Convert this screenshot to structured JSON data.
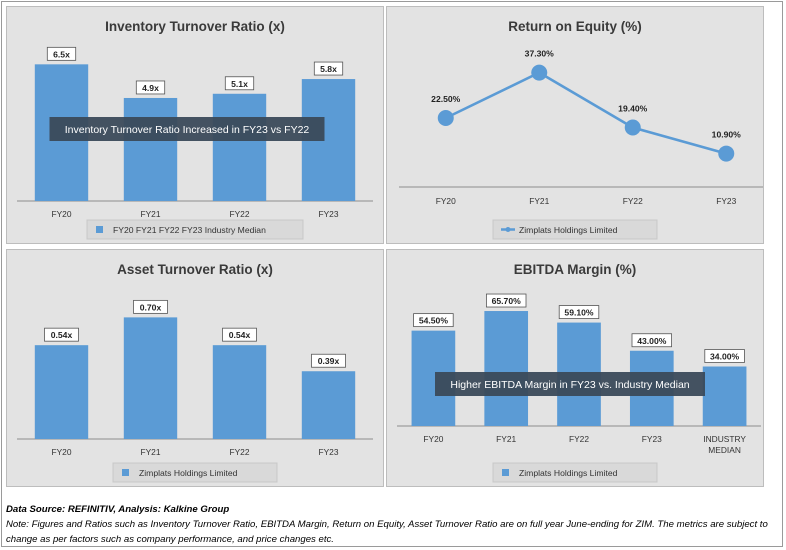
{
  "colors": {
    "bar": "#5b9bd5",
    "panel_bg": "#e3e3e3",
    "annotation_bg": "#3b4a5a",
    "axis": "#8c8c8c"
  },
  "chart_data": [
    {
      "id": "inventory",
      "type": "bar",
      "title": "Inventory Turnover Ratio (x)",
      "categories": [
        "FY20",
        "FY21",
        "FY22",
        "FY23"
      ],
      "values": [
        6.5,
        4.9,
        5.1,
        5.8
      ],
      "labels": [
        "6.5x",
        "4.9x",
        "5.1x",
        "5.8x"
      ],
      "ylim": [
        0,
        7.8
      ],
      "legend": "FY20 FY21 FY22 FY23 Industry Median",
      "legend_position": "bottom",
      "annotation": "Inventory Turnover Ratio Increased in FY23 vs FY22",
      "grid": false
    },
    {
      "id": "roe",
      "type": "line",
      "title": "Return on Equity (%)",
      "categories": [
        "FY20",
        "FY21",
        "FY22",
        "FY23"
      ],
      "values": [
        22.5,
        37.3,
        19.4,
        10.9
      ],
      "labels": [
        "22.50%",
        "37.30%",
        "19.40%",
        "10.90%"
      ],
      "ylim": [
        0,
        45
      ],
      "legend": "Zimplats Holdings Limited",
      "legend_position": "bottom",
      "grid": false
    },
    {
      "id": "asset",
      "type": "bar",
      "title": "Asset Turnover Ratio (x)",
      "categories": [
        "FY20",
        "FY21",
        "FY22",
        "FY23"
      ],
      "values": [
        0.54,
        0.7,
        0.54,
        0.39
      ],
      "labels": [
        "0.54x",
        "0.70x",
        "0.54x",
        "0.39x"
      ],
      "ylim": [
        0,
        0.8
      ],
      "legend": "Zimplats Holdings Limited",
      "legend_position": "bottom",
      "grid": false
    },
    {
      "id": "ebitda",
      "type": "bar",
      "title": "EBITDA Margin (%)",
      "categories": [
        "FY20",
        "FY21",
        "FY22",
        "FY23",
        "INDUSTRY\nMEDIAN"
      ],
      "values": [
        54.5,
        65.7,
        59.1,
        43.0,
        34.0
      ],
      "labels": [
        "54.50%",
        "65.70%",
        "59.10%",
        "43.00%",
        "34.00%"
      ],
      "ylim": [
        0,
        76
      ],
      "legend": "Zimplats Holdings Limited",
      "legend_position": "bottom",
      "annotation": "Higher EBITDA Margin in FY23 vs. Industry Median",
      "grid": false
    }
  ],
  "footer": {
    "source": "Data Source: REFINITIV, Analysis: Kalkine Group",
    "note": "Note: Figures and Ratios such as Inventory Turnover Ratio, EBITDA Margin, Return on Equity, Asset Turnover Ratio are on full year June-ending for ZIM. The metrics are subject to change as per factors such as company performance, and price changes etc."
  }
}
